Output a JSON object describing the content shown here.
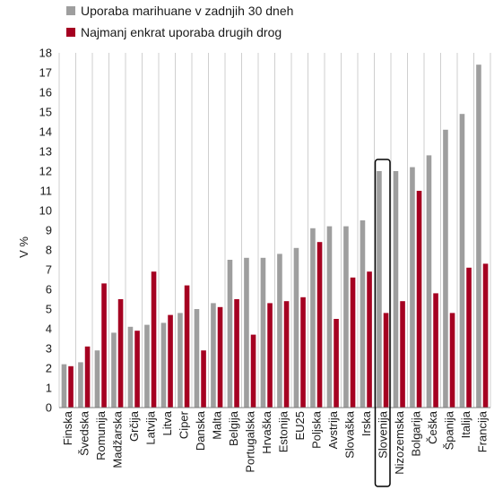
{
  "chart_data": {
    "type": "bar",
    "ylabel": "V %",
    "ylim": [
      0,
      18
    ],
    "yticks": [
      0,
      1,
      2,
      3,
      4,
      5,
      6,
      7,
      8,
      9,
      10,
      11,
      12,
      13,
      14,
      15,
      16,
      17,
      18
    ],
    "grid": "vertical",
    "legend_position": "top-left",
    "highlight_category": "Slovenija",
    "categories": [
      "Finska",
      "Švedska",
      "Romunija",
      "Madžarska",
      "Grčija",
      "Latvija",
      "Litva",
      "Ciper",
      "Danska",
      "Malta",
      "Belgija",
      "Portugalska",
      "Hrvaška",
      "Estonija",
      "EU25",
      "Poljska",
      "Avstrija",
      "Slovaška",
      "Irska",
      "Slovenija",
      "Nizozemska",
      "Bolgarija",
      "Češka",
      "Španija",
      "Italija",
      "Francija"
    ],
    "series": [
      {
        "name": "Uporaba marihuane v zadnjih 30 dneh",
        "color": "#9e9e9e",
        "values": [
          2.2,
          2.3,
          2.9,
          3.8,
          4.1,
          4.2,
          4.3,
          4.8,
          5.0,
          5.3,
          7.5,
          7.6,
          7.6,
          7.8,
          8.1,
          9.1,
          9.2,
          9.2,
          9.5,
          12.0,
          12.0,
          12.2,
          12.8,
          14.1,
          14.9,
          17.4
        ]
      },
      {
        "name": "Najmanj enkrat uporaba drugih drog",
        "color": "#a50021",
        "values": [
          2.1,
          3.1,
          6.3,
          5.5,
          3.9,
          6.9,
          4.7,
          6.2,
          2.9,
          5.1,
          5.5,
          3.7,
          5.3,
          5.4,
          5.6,
          8.4,
          4.5,
          6.6,
          6.9,
          4.8,
          5.4,
          11.0,
          5.8,
          4.8,
          7.1,
          7.3
        ]
      }
    ]
  }
}
